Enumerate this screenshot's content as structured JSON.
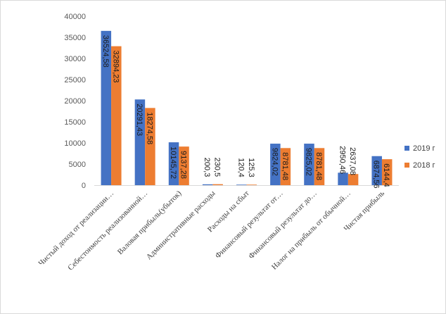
{
  "chart_data": {
    "type": "bar",
    "title": "",
    "xlabel": "",
    "ylabel": "",
    "ylim": [
      0,
      40000
    ],
    "yticks": [
      "0",
      "5000",
      "10000",
      "15000",
      "20000",
      "25000",
      "30000",
      "35000",
      "40000"
    ],
    "grid": false,
    "legend_position": "right",
    "categories": [
      "Чистый доход от реализации…",
      "Себестоимость реализованной…",
      "Валовая прибыль(убыток)",
      "Административные расходы",
      "Расходы  на сбыт",
      "Финансовый результат от…",
      "Финансовый результат до…",
      "Налог на прибыль от обычной…",
      "Чистая прибыль"
    ],
    "series": [
      {
        "name": "2019 г",
        "color": "#4472c4",
        "values": [
          36524.58,
          20291.43,
          10145.72,
          200.3,
          120.4,
          9824.02,
          9825.02,
          2950.46,
          6874.56
        ],
        "labels": [
          "36524,58",
          "20291,43",
          "10145,72",
          "200,3",
          "120,4",
          "9824,02",
          "9825,02",
          "2950,46",
          "6874,56"
        ]
      },
      {
        "name": "2018 г",
        "color": "#ed7d31",
        "values": [
          32894.23,
          18274.58,
          9137.28,
          230.5,
          125.3,
          8781.48,
          8781.48,
          2637.08,
          6144.4
        ],
        "labels": [
          "32894,23",
          "18274,58",
          "9137,28",
          "230,5",
          "125,3",
          "8781,48",
          "8781,48",
          "2637,08",
          "6144,4"
        ]
      }
    ]
  }
}
